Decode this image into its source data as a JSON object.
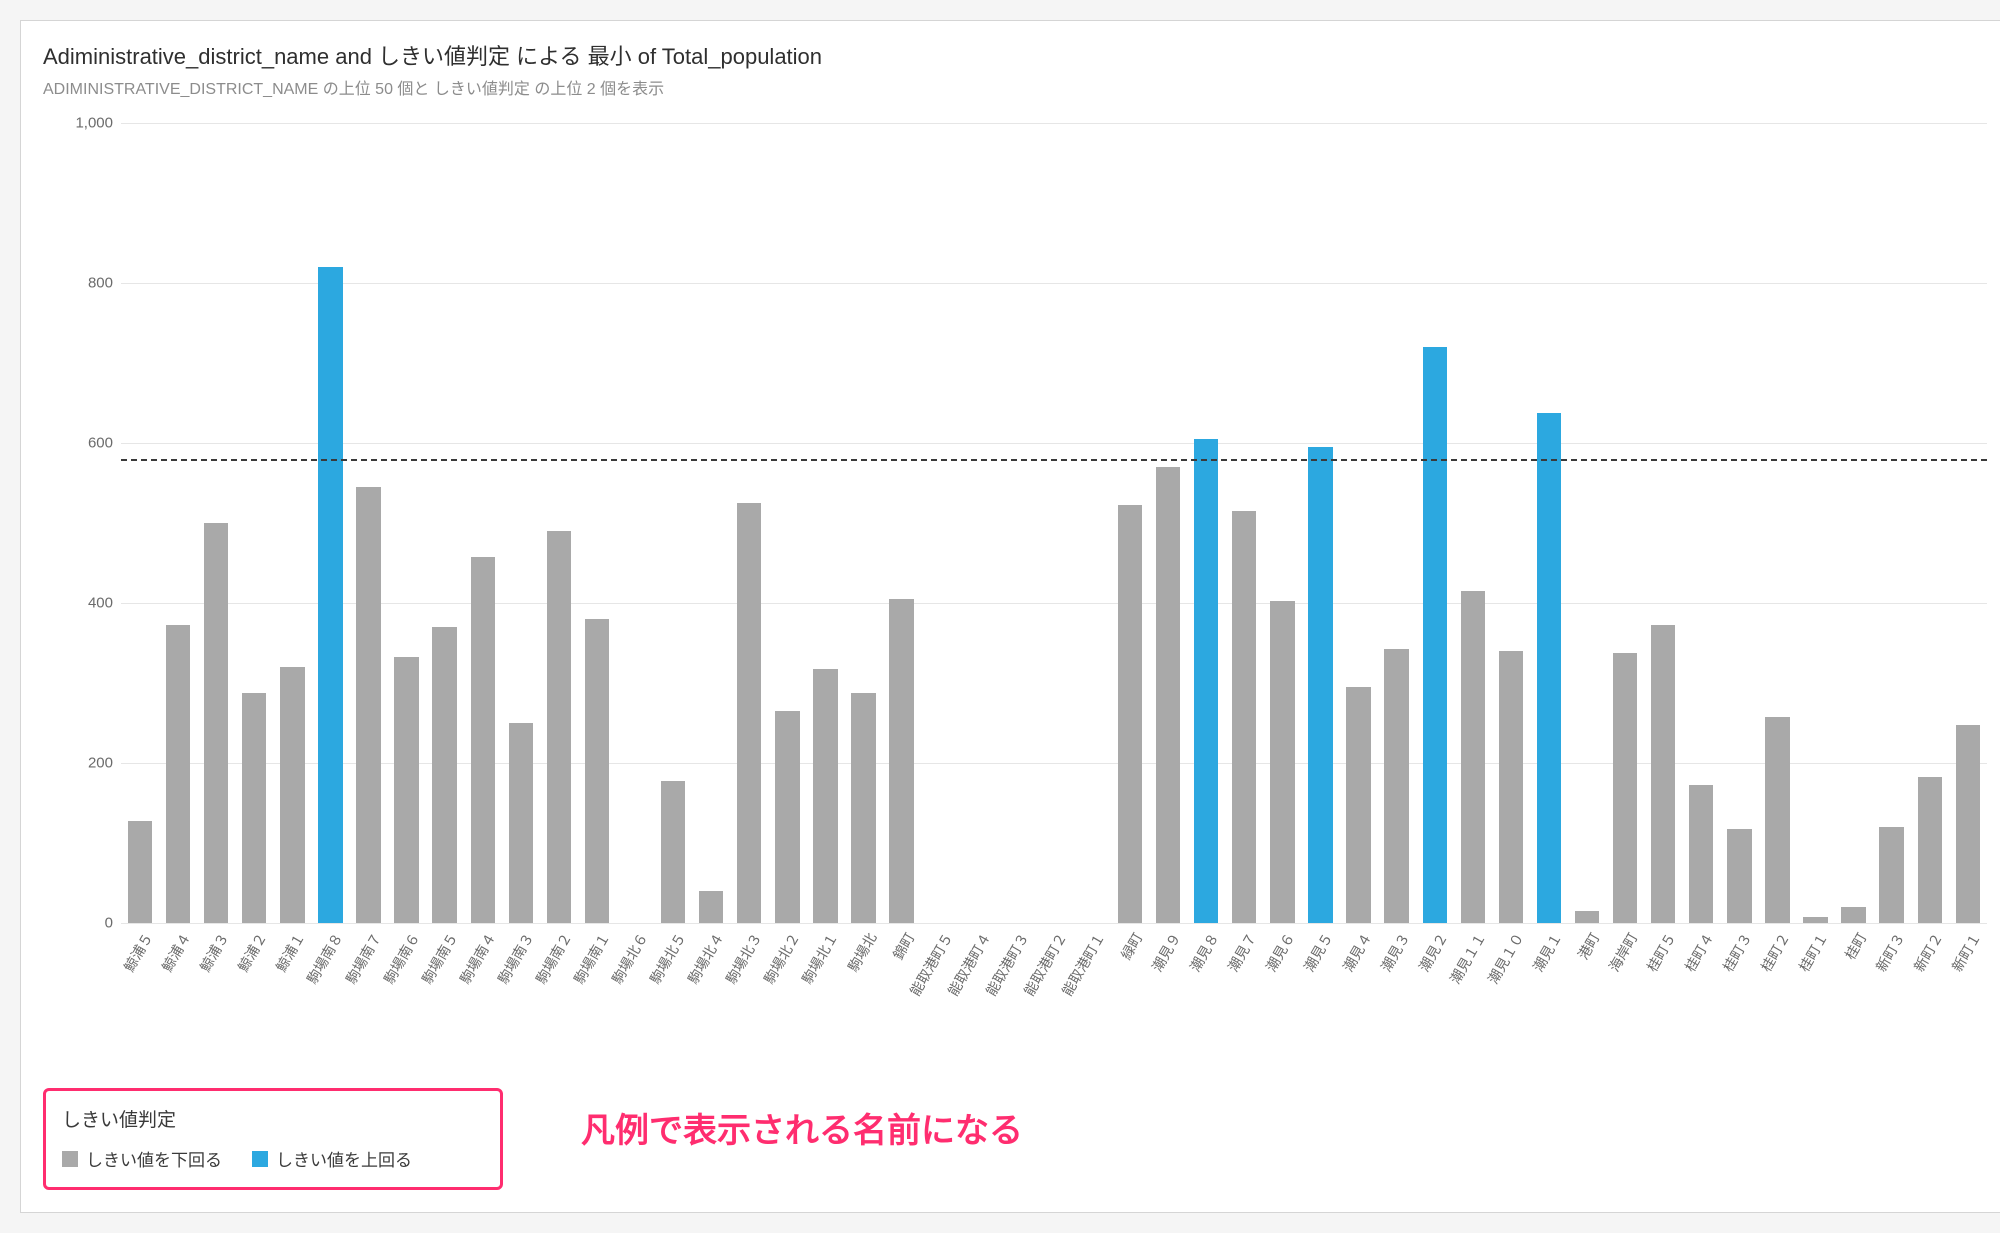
{
  "title": "Adiministrative_district_name and しきい値判定 による 最小 of Total_population",
  "subtitle": "ADIMINISTRATIVE_DISTRICT_NAME の上位 50 個と しきい値判定 の上位 2 個を表示",
  "chart": {
    "type": "bar",
    "ylim": [
      0,
      1000
    ],
    "ytick_step": 200,
    "yticks": [
      0,
      200,
      400,
      600,
      800,
      1000
    ],
    "threshold": 580,
    "threshold_line_color": "#3a3a3a",
    "threshold_line_style": "dashed",
    "background_color": "#ffffff",
    "grid_color": "#e6e6e6",
    "axis_label_color": "#6b6b6b",
    "xlabel_fontsize": 14,
    "ylabel_fontsize": 15,
    "xlabel_rotation": -60,
    "bar_width_ratio": 0.64,
    "series_colors": {
      "below": "#a9a9a9",
      "above": "#2ca8e0"
    },
    "categories": [
      "鯨浦５",
      "鯨浦４",
      "鯨浦３",
      "鯨浦２",
      "鯨浦１",
      "駒場南８",
      "駒場南７",
      "駒場南６",
      "駒場南５",
      "駒場南４",
      "駒場南３",
      "駒場南２",
      "駒場南１",
      "駒場北６",
      "駒場北５",
      "駒場北４",
      "駒場北３",
      "駒場北２",
      "駒場北１",
      "駒場北",
      "錦町",
      "能取港町５",
      "能取港町４",
      "能取港町３",
      "能取港町２",
      "能取港町１",
      "緑町",
      "潮見９",
      "潮見８",
      "潮見７",
      "潮見６",
      "潮見５",
      "潮見４",
      "潮見３",
      "潮見２",
      "潮見１１",
      "潮見１０",
      "潮見１",
      "港町",
      "海岸町",
      "桂町５",
      "桂町４",
      "桂町３",
      "桂町２",
      "桂町１",
      "桂町",
      "新町３",
      "新町２",
      "新町１"
    ],
    "values": [
      128,
      372,
      500,
      288,
      320,
      820,
      545,
      333,
      370,
      457,
      250,
      490,
      380,
      0,
      178,
      40,
      525,
      265,
      318,
      288,
      405,
      0,
      0,
      0,
      0,
      0,
      522,
      570,
      605,
      515,
      403,
      595,
      295,
      342,
      720,
      415,
      340,
      638,
      15,
      338,
      373,
      172,
      118,
      258,
      8,
      20,
      120,
      183,
      248
    ],
    "series": [
      "below",
      "below",
      "below",
      "below",
      "below",
      "above",
      "below",
      "below",
      "below",
      "below",
      "below",
      "below",
      "below",
      "below",
      "below",
      "below",
      "below",
      "below",
      "below",
      "below",
      "below",
      "below",
      "below",
      "below",
      "below",
      "below",
      "below",
      "below",
      "above",
      "below",
      "below",
      "above",
      "below",
      "below",
      "above",
      "below",
      "below",
      "above",
      "below",
      "below",
      "below",
      "below",
      "below",
      "below",
      "below",
      "below",
      "below",
      "below",
      "below"
    ]
  },
  "legend": {
    "title": "しきい値判定",
    "items": [
      {
        "label": "しきい値を下回る",
        "color": "#a9a9a9"
      },
      {
        "label": "しきい値を上回る",
        "color": "#2ca8e0"
      }
    ],
    "box_border_color": "#ff2d6f"
  },
  "annotation": {
    "text": "凡例で表示される名前になる",
    "color": "#ff2d6f",
    "fontsize": 34,
    "fontweight": 700
  }
}
